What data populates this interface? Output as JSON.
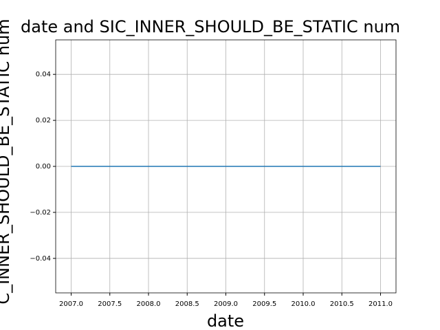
{
  "chart_data": {
    "type": "line",
    "title": "date and SIC_INNER_SHOULD_BE_STATIC num",
    "x_label": "date",
    "y_label": "C_INNER_SHOULD_BE_STATIC num",
    "x": [
      2007,
      2011
    ],
    "series": [
      {
        "name": "SIC_INNER_SHOULD_BE_STATIC",
        "color": "#1f77b4",
        "values": [
          0,
          0
        ]
      }
    ],
    "xlim": [
      2006.8,
      2011.2
    ],
    "ylim": [
      -0.055,
      0.055
    ],
    "xticks": [
      {
        "value": 2007,
        "label": "2007.0"
      },
      {
        "value": 2007.5,
        "label": "2007.5"
      },
      {
        "value": 2008,
        "label": "2008.0"
      },
      {
        "value": 2008.5,
        "label": "2008.5"
      },
      {
        "value": 2009,
        "label": "2009.0"
      },
      {
        "value": 2009.5,
        "label": "2009.5"
      },
      {
        "value": 2010,
        "label": "2010.0"
      },
      {
        "value": 2010.5,
        "label": "2010.5"
      },
      {
        "value": 2011,
        "label": "2011.0"
      }
    ],
    "yticks": [
      {
        "value": -0.04,
        "label": "−0.04"
      },
      {
        "value": -0.02,
        "label": "−0.02"
      },
      {
        "value": 0,
        "label": "0.00"
      },
      {
        "value": 0.02,
        "label": "0.02"
      },
      {
        "value": 0.04,
        "label": "0.04"
      }
    ],
    "grid": true
  }
}
